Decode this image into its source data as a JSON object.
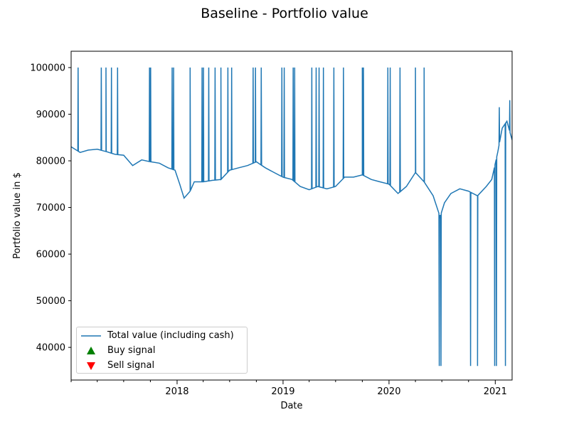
{
  "chart_data": {
    "type": "line",
    "title": "Baseline - Portfolio value",
    "xlabel": "Date",
    "ylabel": "Portfolio value in $",
    "x_range": [
      "2017-01-01",
      "2021-02-28"
    ],
    "ylim": [
      33000,
      103500
    ],
    "x_ticks": [
      "2018",
      "2019",
      "2020",
      "2021"
    ],
    "y_ticks": [
      40000,
      50000,
      60000,
      70000,
      80000,
      90000,
      100000
    ],
    "grid": false,
    "legend_placement": "lower-left",
    "legend": [
      {
        "label": "Total value (including cash)",
        "marker": "line",
        "color": "#1f77b4"
      },
      {
        "label": "Buy signal",
        "marker": "triangle-up",
        "color": "#008000"
      },
      {
        "label": "Sell signal",
        "marker": "triangle-down",
        "color": "#ff0000"
      }
    ],
    "series": [
      {
        "name": "Total value (including cash)",
        "color": "#1f77b4",
        "baseline_points": [
          [
            "2017-01-01",
            83000
          ],
          [
            "2017-02-01",
            81800
          ],
          [
            "2017-03-01",
            82300
          ],
          [
            "2017-04-01",
            82500
          ],
          [
            "2017-05-01",
            82000
          ],
          [
            "2017-06-01",
            81400
          ],
          [
            "2017-07-01",
            81200
          ],
          [
            "2017-08-01",
            79000
          ],
          [
            "2017-09-01",
            80200
          ],
          [
            "2017-10-01",
            79800
          ],
          [
            "2017-11-01",
            79500
          ],
          [
            "2017-12-01",
            78500
          ],
          [
            "2017-12-25",
            78000
          ],
          [
            "2018-01-10",
            75000
          ],
          [
            "2018-01-25",
            72000
          ],
          [
            "2018-02-15",
            73500
          ],
          [
            "2018-03-01",
            75500
          ],
          [
            "2018-04-01",
            75500
          ],
          [
            "2018-05-01",
            75800
          ],
          [
            "2018-06-01",
            76000
          ],
          [
            "2018-07-01",
            78000
          ],
          [
            "2018-08-01",
            78500
          ],
          [
            "2018-09-01",
            79000
          ],
          [
            "2018-10-01",
            79800
          ],
          [
            "2018-11-01",
            78500
          ],
          [
            "2018-12-01",
            77500
          ],
          [
            "2019-01-01",
            76500
          ],
          [
            "2019-02-01",
            76000
          ],
          [
            "2019-03-01",
            74500
          ],
          [
            "2019-04-01",
            73800
          ],
          [
            "2019-05-01",
            74500
          ],
          [
            "2019-06-01",
            74000
          ],
          [
            "2019-07-01",
            74500
          ],
          [
            "2019-08-01",
            76500
          ],
          [
            "2019-09-01",
            76500
          ],
          [
            "2019-10-01",
            77000
          ],
          [
            "2019-11-01",
            76000
          ],
          [
            "2019-12-01",
            75500
          ],
          [
            "2020-01-01",
            75000
          ],
          [
            "2020-02-01",
            73000
          ],
          [
            "2020-03-01",
            74500
          ],
          [
            "2020-04-01",
            77500
          ],
          [
            "2020-05-01",
            75500
          ],
          [
            "2020-06-01",
            72500
          ],
          [
            "2020-06-25",
            68000
          ],
          [
            "2020-07-10",
            71000
          ],
          [
            "2020-08-01",
            73000
          ],
          [
            "2020-09-01",
            74000
          ],
          [
            "2020-10-01",
            73500
          ],
          [
            "2020-11-01",
            72500
          ],
          [
            "2020-12-01",
            74500
          ],
          [
            "2020-12-20",
            76000
          ],
          [
            "2021-01-10",
            82000
          ],
          [
            "2021-01-25",
            87000
          ],
          [
            "2021-02-10",
            88500
          ],
          [
            "2021-02-28",
            84500
          ]
        ],
        "spikes_up": [
          [
            "2017-01-25",
            100000
          ],
          [
            "2017-04-15",
            100000
          ],
          [
            "2017-05-01",
            100000
          ],
          [
            "2017-05-20",
            100000
          ],
          [
            "2017-06-10",
            100000
          ],
          [
            "2017-09-28",
            100000
          ],
          [
            "2017-10-02",
            100000
          ],
          [
            "2017-12-15",
            100000
          ],
          [
            "2017-12-20",
            100000
          ],
          [
            "2018-02-15",
            100000
          ],
          [
            "2018-03-28",
            100000
          ],
          [
            "2018-04-02",
            100000
          ],
          [
            "2018-04-20",
            100000
          ],
          [
            "2018-05-12",
            100000
          ],
          [
            "2018-06-01",
            100000
          ],
          [
            "2018-06-25",
            100000
          ],
          [
            "2018-07-08",
            100000
          ],
          [
            "2018-09-20",
            100000
          ],
          [
            "2018-09-28",
            100000
          ],
          [
            "2018-10-18",
            100000
          ],
          [
            "2018-12-28",
            100000
          ],
          [
            "2019-01-05",
            100000
          ],
          [
            "2019-02-05",
            100000
          ],
          [
            "2019-02-10",
            100000
          ],
          [
            "2019-04-10",
            100000
          ],
          [
            "2019-04-25",
            100000
          ],
          [
            "2019-05-05",
            100000
          ],
          [
            "2019-05-20",
            100000
          ],
          [
            "2019-06-25",
            100000
          ],
          [
            "2019-07-28",
            100000
          ],
          [
            "2019-10-01",
            100000
          ],
          [
            "2019-10-05",
            100000
          ],
          [
            "2019-12-28",
            100000
          ],
          [
            "2020-01-05",
            100000
          ],
          [
            "2020-02-08",
            100000
          ],
          [
            "2020-04-01",
            100000
          ],
          [
            "2020-05-01",
            100000
          ],
          [
            "2021-01-15",
            91500
          ],
          [
            "2021-02-20",
            93000
          ]
        ],
        "spikes_down": [
          [
            "2020-06-22",
            36000
          ],
          [
            "2020-06-28",
            36000
          ],
          [
            "2020-10-08",
            36000
          ],
          [
            "2020-11-01",
            36000
          ],
          [
            "2020-12-30",
            36000
          ],
          [
            "2021-01-05",
            36000
          ],
          [
            "2021-02-05",
            36000
          ]
        ]
      }
    ]
  }
}
